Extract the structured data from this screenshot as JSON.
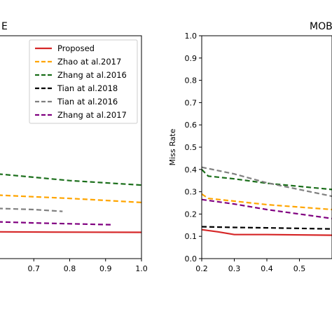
{
  "chart_data": [
    {
      "type": "line",
      "title": "E",
      "xlabel": "",
      "ylabel": "",
      "xlim": [
        0.6,
        1.0
      ],
      "ylim": [
        0.0,
        1.0
      ],
      "x_ticks": [
        0.7,
        0.8,
        0.9,
        1.0
      ],
      "x_tick_labels": [
        "0.7",
        "0.8",
        "0.9",
        "1.0"
      ],
      "legend": {
        "placement": "top-right",
        "entries": [
          "Proposed",
          "Zhao at al.2017",
          "Zhang at al.2016",
          "Tian at al.2018",
          "Tian at al.2016",
          "Zhang at al.2017"
        ]
      },
      "series": [
        {
          "name": "Proposed",
          "color": "#d62728",
          "dashed": false,
          "points": [
            [
              0.6,
              0.12
            ],
            [
              0.75,
              0.119
            ],
            [
              1.0,
              0.118
            ]
          ]
        },
        {
          "name": "Zhao at al.2017",
          "color": "#ffa500",
          "dashed": true,
          "points": [
            [
              0.6,
              0.285
            ],
            [
              0.8,
              0.27
            ],
            [
              1.0,
              0.252
            ]
          ]
        },
        {
          "name": "Zhang at al.2016",
          "color": "#1a6e1a",
          "dashed": true,
          "points": [
            [
              0.6,
              0.38
            ],
            [
              0.7,
              0.365
            ],
            [
              0.8,
              0.35
            ],
            [
              1.0,
              0.33
            ]
          ]
        },
        {
          "name": "Tian at al.2016",
          "color": "#808080",
          "dashed": true,
          "points": [
            [
              0.6,
              0.225
            ],
            [
              0.7,
              0.22
            ],
            [
              0.78,
              0.212
            ]
          ]
        },
        {
          "name": "Zhang at al.2017",
          "color": "#800080",
          "dashed": true,
          "points": [
            [
              0.6,
              0.165
            ],
            [
              0.7,
              0.16
            ],
            [
              0.92,
              0.152
            ]
          ]
        }
      ]
    },
    {
      "type": "line",
      "title": "MOB",
      "xlabel": "",
      "ylabel": "Miss Rate",
      "xlim": [
        0.2,
        0.6
      ],
      "ylim": [
        0.0,
        1.0
      ],
      "x_ticks": [
        0.2,
        0.3,
        0.4,
        0.5
      ],
      "x_tick_labels": [
        "0.2",
        "0.3",
        "0.4",
        "0.5"
      ],
      "y_ticks": [
        0.0,
        0.1,
        0.2,
        0.3,
        0.4,
        0.5,
        0.6,
        0.7,
        0.8,
        0.9,
        1.0
      ],
      "y_tick_labels": [
        "0.0",
        "0.1",
        "0.2",
        "0.3",
        "0.4",
        "0.5",
        "0.6",
        "0.7",
        "0.8",
        "0.9",
        "1.0"
      ],
      "series": [
        {
          "name": "Proposed",
          "color": "#d62728",
          "dashed": false,
          "points": [
            [
              0.2,
              0.13
            ],
            [
              0.25,
              0.12
            ],
            [
              0.3,
              0.108
            ],
            [
              0.4,
              0.108
            ],
            [
              0.6,
              0.105
            ]
          ]
        },
        {
          "name": "Zhao at al.2017",
          "color": "#ffa500",
          "dashed": true,
          "points": [
            [
              0.2,
              0.29
            ],
            [
              0.22,
              0.27
            ],
            [
              0.3,
              0.258
            ],
            [
              0.4,
              0.242
            ],
            [
              0.6,
              0.22
            ]
          ]
        },
        {
          "name": "Zhang at al.2016",
          "color": "#1a6e1a",
          "dashed": true,
          "points": [
            [
              0.2,
              0.4
            ],
            [
              0.22,
              0.37
            ],
            [
              0.3,
              0.358
            ],
            [
              0.4,
              0.338
            ],
            [
              0.6,
              0.31
            ]
          ]
        },
        {
          "name": "Tian at al.2018",
          "color": "#000000",
          "dashed": true,
          "points": [
            [
              0.2,
              0.143
            ],
            [
              0.3,
              0.14
            ],
            [
              0.4,
              0.138
            ],
            [
              0.6,
              0.133
            ]
          ]
        },
        {
          "name": "Tian at al.2016",
          "color": "#808080",
          "dashed": true,
          "points": [
            [
              0.2,
              0.41
            ],
            [
              0.3,
              0.38
            ],
            [
              0.4,
              0.34
            ],
            [
              0.6,
              0.28
            ]
          ]
        },
        {
          "name": "Zhang at al.2017",
          "color": "#800080",
          "dashed": true,
          "points": [
            [
              0.2,
              0.265
            ],
            [
              0.3,
              0.245
            ],
            [
              0.4,
              0.22
            ],
            [
              0.6,
              0.18
            ]
          ]
        }
      ]
    }
  ]
}
